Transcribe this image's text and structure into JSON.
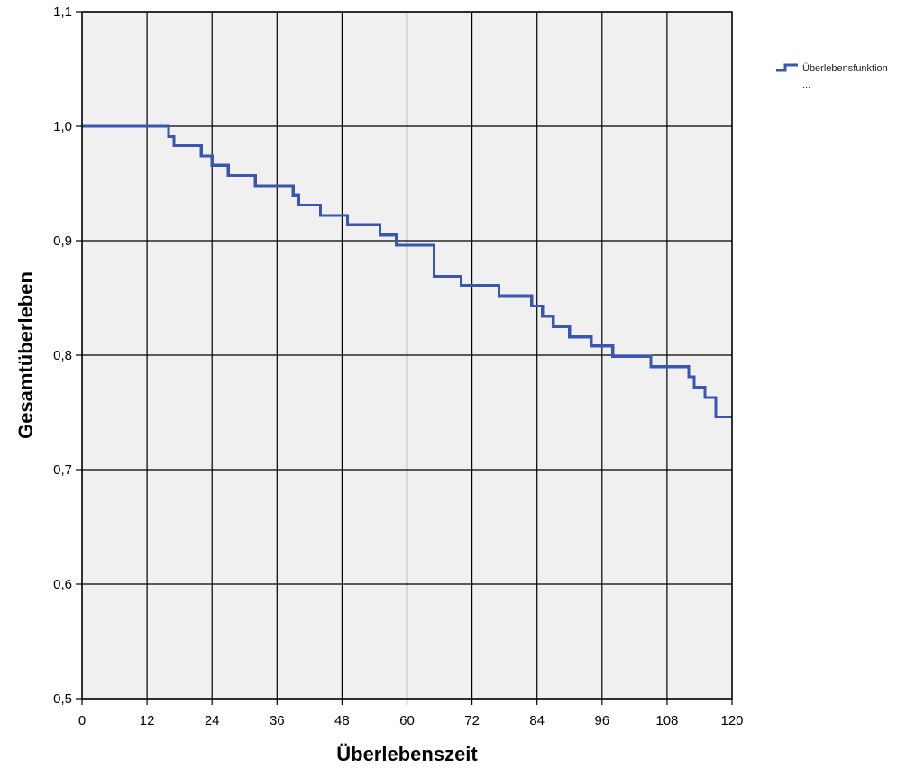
{
  "chart_data": {
    "type": "line",
    "subtype": "step",
    "xlabel": "Überlebenszeit",
    "ylabel": "Gesamtüberleben",
    "xlim": [
      0,
      120
    ],
    "ylim": [
      0.5,
      1.1
    ],
    "x_ticks": [
      0,
      12,
      24,
      36,
      48,
      60,
      72,
      84,
      96,
      108,
      120
    ],
    "x_tick_labels": [
      "0",
      "12",
      "24",
      "36",
      "48",
      "60",
      "72",
      "84",
      "96",
      "108",
      "120"
    ],
    "y_ticks": [
      0.5,
      0.6,
      0.7,
      0.8,
      0.9,
      1.0,
      1.1
    ],
    "y_tick_labels": [
      "0,5",
      "0,6",
      "0,7",
      "0,8",
      "0,9",
      "1,0",
      "1,1"
    ],
    "grid": true,
    "legend_position": "top-right, outside plot",
    "legend_entries": [
      "Überlebensfunktion",
      "..."
    ],
    "colors": {
      "line": "#3a56b0",
      "plot_background": "#f0f0f0",
      "grid": "#000000"
    },
    "series": [
      {
        "name": "Überlebensfunktion",
        "x": [
          0,
          16,
          17,
          22,
          24,
          27,
          32,
          39,
          40,
          44,
          49,
          55,
          58,
          65,
          70,
          77,
          83,
          85,
          87,
          90,
          94,
          98,
          105,
          112,
          113,
          115,
          117,
          120
        ],
        "y": [
          1.0,
          0.991,
          0.983,
          0.974,
          0.966,
          0.957,
          0.948,
          0.94,
          0.931,
          0.922,
          0.914,
          0.905,
          0.896,
          0.869,
          0.861,
          0.852,
          0.843,
          0.834,
          0.825,
          0.816,
          0.808,
          0.799,
          0.79,
          0.781,
          0.772,
          0.763,
          0.746,
          0.746
        ]
      }
    ]
  }
}
